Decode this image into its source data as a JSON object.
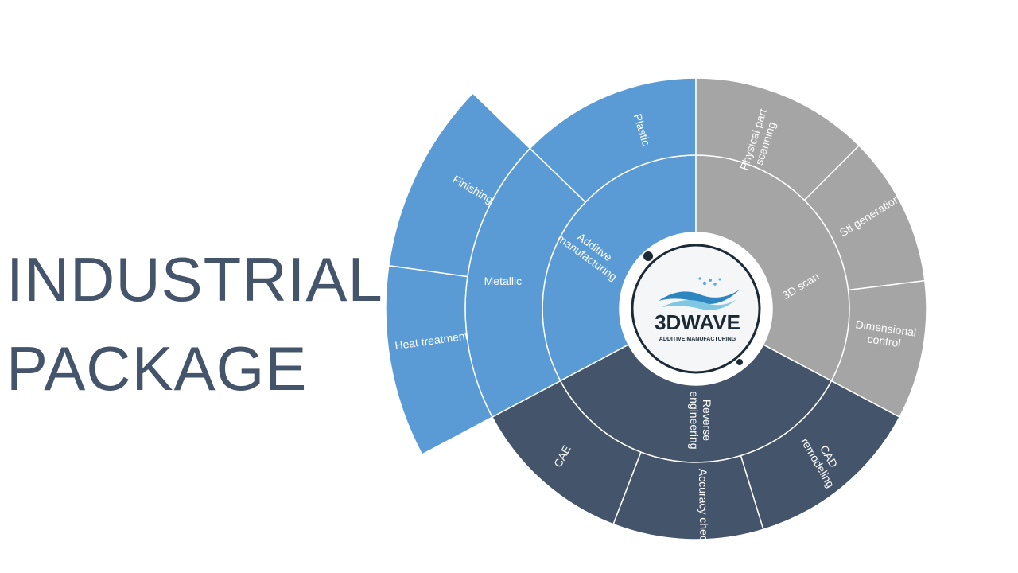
{
  "title": {
    "line1": "INDUSTRIAL",
    "line2": "PACKAGE"
  },
  "logo": {
    "name": "3DWAVE",
    "tagline": "ADDITIVE MANUFACTURING"
  },
  "colors": {
    "additive": "#5b9bd5",
    "scan": "#a5a5a5",
    "reverse": "#44546a",
    "title": "#44546a"
  },
  "diagram": {
    "groups": [
      {
        "key": "additive",
        "label": [
          "Additive",
          "manufacturing"
        ],
        "children": [
          {
            "key": "metallic",
            "label": [
              "Metallic"
            ],
            "children": [
              {
                "key": "finishing",
                "label": [
                  "Finishing"
                ]
              },
              {
                "key": "heat",
                "label": [
                  "Heat treatment"
                ]
              }
            ]
          },
          {
            "key": "plastic",
            "label": [
              "Plastic"
            ]
          }
        ]
      },
      {
        "key": "scan",
        "label": [
          "3D scan"
        ],
        "children": [
          {
            "key": "physical",
            "label": [
              "Physical part",
              "scanning"
            ]
          },
          {
            "key": "stl",
            "label": [
              "Stl generation"
            ]
          },
          {
            "key": "dimensional",
            "label": [
              "Dimensional",
              "control"
            ]
          }
        ]
      },
      {
        "key": "reverse",
        "label": [
          "Reverse",
          "engineering"
        ],
        "children": [
          {
            "key": "cad",
            "label": [
              "CAD",
              "remodeling"
            ]
          },
          {
            "key": "accuracy",
            "label": [
              "Accuracy check"
            ]
          },
          {
            "key": "cae",
            "label": [
              "CAE"
            ]
          }
        ]
      }
    ]
  }
}
